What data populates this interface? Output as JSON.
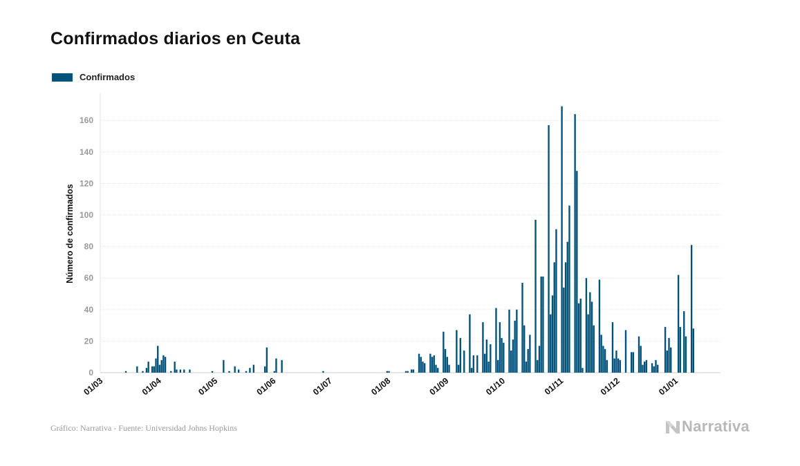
{
  "title": "Confirmados diarios en Ceuta",
  "footer": "Gráfico: Narrativa - Fuente: Universidad Johns Hopkins",
  "brand": "Narrativa",
  "colors": {
    "bar": "#00527a",
    "grid": "#e3e3e3",
    "axis": "#cccccc"
  },
  "chart_data": {
    "type": "bar",
    "title": "Confirmados diarios en Ceuta",
    "ylabel": "Número de confirmados",
    "xlabel": "",
    "ylim": [
      0,
      170
    ],
    "yticks": [
      0,
      20,
      40,
      60,
      80,
      100,
      120,
      140,
      160
    ],
    "grid": true,
    "legend_position": "top-left",
    "x_ticks": [
      "01/03",
      "01/04",
      "01/05",
      "01/06",
      "01/07",
      "01/08",
      "01/09",
      "01/10",
      "01/11",
      "01/12",
      "01/01"
    ],
    "series": [
      {
        "name": "Confirmados",
        "points": [
          [
            "2020-03-14",
            1
          ],
          [
            "2020-03-20",
            4
          ],
          [
            "2020-03-23",
            1
          ],
          [
            "2020-03-25",
            3
          ],
          [
            "2020-03-26",
            7
          ],
          [
            "2020-03-28",
            4
          ],
          [
            "2020-03-29",
            4
          ],
          [
            "2020-03-30",
            9
          ],
          [
            "2020-03-31",
            17
          ],
          [
            "2020-04-01",
            5
          ],
          [
            "2020-04-02",
            8
          ],
          [
            "2020-04-03",
            11
          ],
          [
            "2020-04-04",
            10
          ],
          [
            "2020-04-07",
            1
          ],
          [
            "2020-04-09",
            7
          ],
          [
            "2020-04-10",
            2
          ],
          [
            "2020-04-12",
            2
          ],
          [
            "2020-04-14",
            2
          ],
          [
            "2020-04-17",
            2
          ],
          [
            "2020-04-29",
            1
          ],
          [
            "2020-05-05",
            8
          ],
          [
            "2020-05-08",
            1
          ],
          [
            "2020-05-11",
            4
          ],
          [
            "2020-05-13",
            2
          ],
          [
            "2020-05-17",
            1
          ],
          [
            "2020-05-19",
            3
          ],
          [
            "2020-05-21",
            5
          ],
          [
            "2020-05-27",
            4
          ],
          [
            "2020-05-28",
            16
          ],
          [
            "2020-06-01",
            1
          ],
          [
            "2020-06-02",
            9
          ],
          [
            "2020-06-05",
            8
          ],
          [
            "2020-06-27",
            1
          ],
          [
            "2020-07-31",
            1
          ],
          [
            "2020-08-01",
            1
          ],
          [
            "2020-08-10",
            1
          ],
          [
            "2020-08-11",
            1
          ],
          [
            "2020-08-13",
            2
          ],
          [
            "2020-08-14",
            2
          ],
          [
            "2020-08-17",
            12
          ],
          [
            "2020-08-18",
            10
          ],
          [
            "2020-08-19",
            7
          ],
          [
            "2020-08-20",
            6
          ],
          [
            "2020-08-23",
            12
          ],
          [
            "2020-08-24",
            10
          ],
          [
            "2020-08-25",
            11
          ],
          [
            "2020-08-26",
            5
          ],
          [
            "2020-08-27",
            3
          ],
          [
            "2020-08-30",
            26
          ],
          [
            "2020-08-31",
            15
          ],
          [
            "2020-09-01",
            10
          ],
          [
            "2020-09-02",
            5
          ],
          [
            "2020-09-06",
            27
          ],
          [
            "2020-09-07",
            5
          ],
          [
            "2020-09-08",
            22
          ],
          [
            "2020-09-10",
            14
          ],
          [
            "2020-09-13",
            37
          ],
          [
            "2020-09-14",
            3
          ],
          [
            "2020-09-15",
            11
          ],
          [
            "2020-09-17",
            11
          ],
          [
            "2020-09-20",
            32
          ],
          [
            "2020-09-21",
            12
          ],
          [
            "2020-09-22",
            21
          ],
          [
            "2020-09-23",
            7
          ],
          [
            "2020-09-24",
            18
          ],
          [
            "2020-09-27",
            41
          ],
          [
            "2020-09-28",
            8
          ],
          [
            "2020-09-29",
            32
          ],
          [
            "2020-09-30",
            22
          ],
          [
            "2020-10-01",
            19
          ],
          [
            "2020-10-04",
            40
          ],
          [
            "2020-10-05",
            14
          ],
          [
            "2020-10-06",
            21
          ],
          [
            "2020-10-07",
            33
          ],
          [
            "2020-10-08",
            40
          ],
          [
            "2020-10-11",
            57
          ],
          [
            "2020-10-12",
            30
          ],
          [
            "2020-10-13",
            7
          ],
          [
            "2020-10-14",
            15
          ],
          [
            "2020-10-15",
            24
          ],
          [
            "2020-10-18",
            97
          ],
          [
            "2020-10-19",
            8
          ],
          [
            "2020-10-20",
            17
          ],
          [
            "2020-10-21",
            61
          ],
          [
            "2020-10-22",
            61
          ],
          [
            "2020-10-25",
            157
          ],
          [
            "2020-10-26",
            37
          ],
          [
            "2020-10-27",
            49
          ],
          [
            "2020-10-28",
            70
          ],
          [
            "2020-10-29",
            91
          ],
          [
            "2020-11-01",
            169
          ],
          [
            "2020-11-02",
            54
          ],
          [
            "2020-11-03",
            70
          ],
          [
            "2020-11-04",
            83
          ],
          [
            "2020-11-05",
            106
          ],
          [
            "2020-11-08",
            164
          ],
          [
            "2020-11-09",
            128
          ],
          [
            "2020-11-10",
            44
          ],
          [
            "2020-11-11",
            47
          ],
          [
            "2020-11-12",
            3
          ],
          [
            "2020-11-14",
            60
          ],
          [
            "2020-11-15",
            37
          ],
          [
            "2020-11-16",
            51
          ],
          [
            "2020-11-17",
            45
          ],
          [
            "2020-11-18",
            30
          ],
          [
            "2020-11-21",
            59
          ],
          [
            "2020-11-22",
            24
          ],
          [
            "2020-11-23",
            17
          ],
          [
            "2020-11-24",
            15
          ],
          [
            "2020-11-25",
            8
          ],
          [
            "2020-11-28",
            32
          ],
          [
            "2020-11-29",
            9
          ],
          [
            "2020-11-30",
            14
          ],
          [
            "2020-12-01",
            9
          ],
          [
            "2020-12-02",
            8
          ],
          [
            "2020-12-05",
            27
          ],
          [
            "2020-12-08",
            13
          ],
          [
            "2020-12-09",
            13
          ],
          [
            "2020-12-12",
            23
          ],
          [
            "2020-12-13",
            17
          ],
          [
            "2020-12-14",
            5
          ],
          [
            "2020-12-15",
            7
          ],
          [
            "2020-12-16",
            8
          ],
          [
            "2020-12-19",
            6
          ],
          [
            "2020-12-20",
            4
          ],
          [
            "2020-12-21",
            8
          ],
          [
            "2020-12-22",
            5
          ],
          [
            "2020-12-26",
            29
          ],
          [
            "2020-12-27",
            14
          ],
          [
            "2020-12-28",
            22
          ],
          [
            "2020-12-29",
            16
          ],
          [
            "2021-01-02",
            62
          ],
          [
            "2021-01-03",
            29
          ],
          [
            "2021-01-05",
            39
          ],
          [
            "2021-01-06",
            23
          ],
          [
            "2021-01-09",
            81
          ],
          [
            "2021-01-10",
            28
          ]
        ]
      }
    ]
  }
}
